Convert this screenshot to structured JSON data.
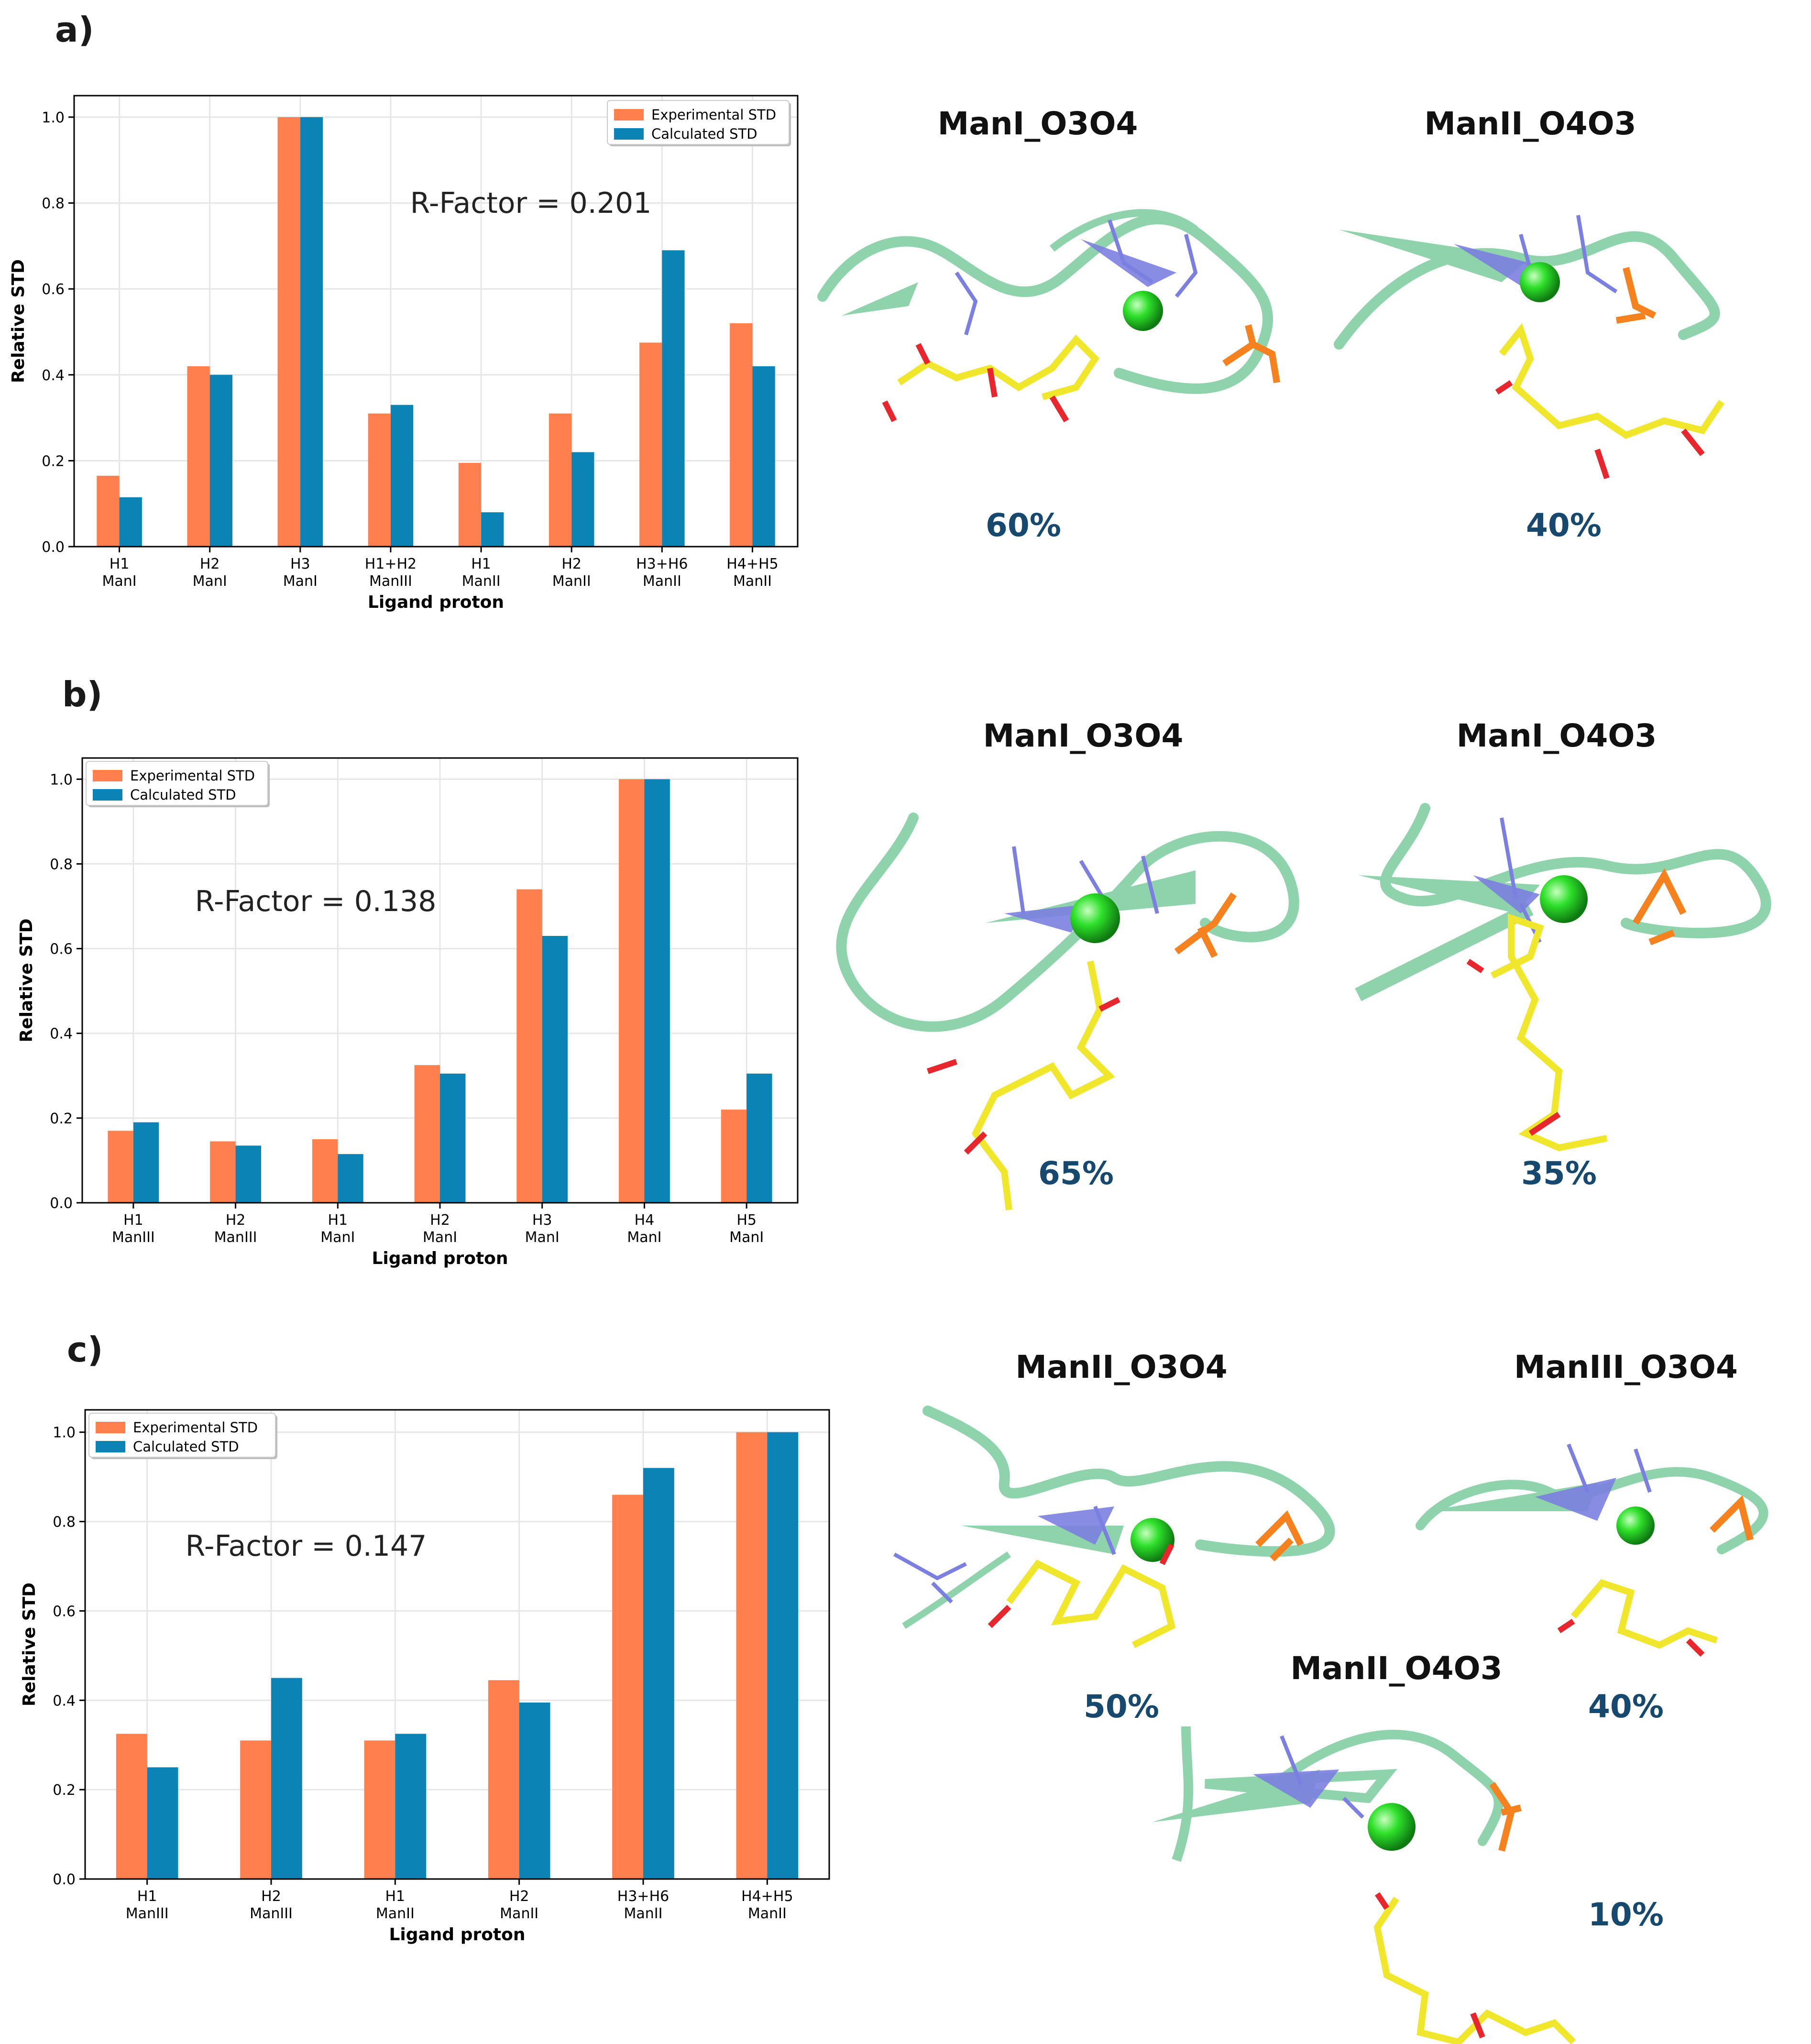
{
  "colors": {
    "experimental": "#ff7f4e",
    "calculated": "#0b84b5",
    "ribbon": "#8fd3ad",
    "residue": "#7b7fe0",
    "ligand": "#f0e62c",
    "oxygen": "#e8262d",
    "fluorine": "#7fe3f2",
    "nitrogen": "#2b3ff0",
    "calcium": "#22d126",
    "arginine": "#f5821f",
    "percent_text": "#17496e"
  },
  "panels": [
    {
      "letter": "a)",
      "structures": [
        {
          "title": "ManI_O3O4",
          "percent": "60%"
        },
        {
          "title": "ManII_O4O3",
          "percent": "40%"
        }
      ]
    },
    {
      "letter": "b)",
      "structures": [
        {
          "title": "ManI_O3O4",
          "percent": "65%"
        },
        {
          "title": "ManI_O4O3",
          "percent": "35%"
        }
      ]
    },
    {
      "letter": "c)",
      "structures": [
        {
          "title": "ManII_O3O4",
          "percent": "50%"
        },
        {
          "title": "ManIII_O3O4",
          "percent": "40%"
        },
        {
          "title": "ManII_O4O3",
          "percent": "10%"
        }
      ]
    }
  ],
  "chart_data": [
    {
      "type": "bar",
      "categories": [
        [
          "H1",
          "ManI"
        ],
        [
          "H2",
          "ManI"
        ],
        [
          "H3",
          "ManI"
        ],
        [
          "H1+H2",
          "ManIII"
        ],
        [
          "H1",
          "ManII"
        ],
        [
          "H2",
          "ManII"
        ],
        [
          "H3+H6",
          "ManII"
        ],
        [
          "H4+H5",
          "ManII"
        ]
      ],
      "series": [
        {
          "name": "Experimental STD",
          "values": [
            0.165,
            0.42,
            1.0,
            0.31,
            0.195,
            0.31,
            0.475,
            0.52
          ]
        },
        {
          "name": "Calculated STD",
          "values": [
            0.115,
            0.4,
            1.0,
            0.33,
            0.08,
            0.22,
            0.69,
            0.42
          ]
        }
      ],
      "xlabel": "Ligand proton",
      "ylabel": "Relative STD",
      "ylim": [
        0,
        1.05
      ],
      "yticks": [
        "0.0",
        "0.2",
        "0.4",
        "0.6",
        "0.8",
        "1.0"
      ],
      "annotation": "R-Factor = 0.201",
      "legend_position": "top-right",
      "grid": true
    },
    {
      "type": "bar",
      "categories": [
        [
          "H1",
          "ManIII"
        ],
        [
          "H2",
          "ManIII"
        ],
        [
          "H1",
          "ManI"
        ],
        [
          "H2",
          "ManI"
        ],
        [
          "H3",
          "ManI"
        ],
        [
          "H4",
          "ManI"
        ],
        [
          "H5",
          "ManI"
        ]
      ],
      "series": [
        {
          "name": "Experimental STD",
          "values": [
            0.17,
            0.145,
            0.15,
            0.325,
            0.74,
            1.0,
            0.22
          ]
        },
        {
          "name": "Calculated STD",
          "values": [
            0.19,
            0.135,
            0.115,
            0.305,
            0.63,
            1.0,
            0.305
          ]
        }
      ],
      "xlabel": "Ligand proton",
      "ylabel": "Relative STD",
      "ylim": [
        0,
        1.05
      ],
      "yticks": [
        "0.0",
        "0.2",
        "0.4",
        "0.6",
        "0.8",
        "1.0"
      ],
      "annotation": "R-Factor = 0.138",
      "legend_position": "top-left",
      "grid": true
    },
    {
      "type": "bar",
      "categories": [
        [
          "H1",
          "ManIII"
        ],
        [
          "H2",
          "ManIII"
        ],
        [
          "H1",
          "ManII"
        ],
        [
          "H2",
          "ManII"
        ],
        [
          "H3+H6",
          "ManII"
        ],
        [
          "H4+H5",
          "ManII"
        ]
      ],
      "series": [
        {
          "name": "Experimental STD",
          "values": [
            0.325,
            0.31,
            0.31,
            0.445,
            0.86,
            1.0
          ]
        },
        {
          "name": "Calculated STD",
          "values": [
            0.25,
            0.45,
            0.325,
            0.395,
            0.92,
            1.0
          ]
        }
      ],
      "xlabel": "Ligand proton",
      "ylabel": "Relative STD",
      "ylim": [
        0,
        1.05
      ],
      "yticks": [
        "0.0",
        "0.2",
        "0.4",
        "0.6",
        "0.8",
        "1.0"
      ],
      "annotation": "R-Factor = 0.147",
      "legend_position": "top-left",
      "grid": true
    }
  ]
}
